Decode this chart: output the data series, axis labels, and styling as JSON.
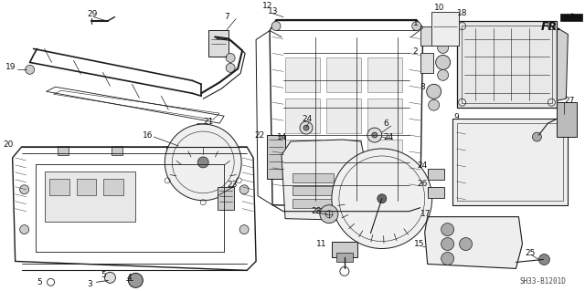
{
  "background_color": "#ffffff",
  "line_color": "#1a1a1a",
  "diagram_code": "SH33-B1201D",
  "fr_label": "FR.",
  "figsize": [
    6.4,
    3.19
  ],
  "dpi": 100,
  "label_fontsize": 6.5,
  "label_color": "#111111"
}
